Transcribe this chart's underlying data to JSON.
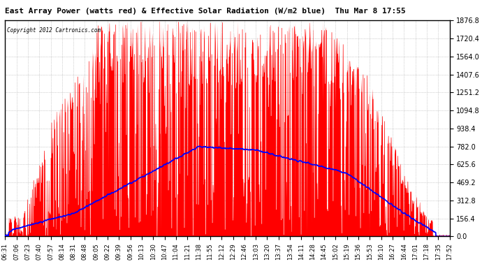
{
  "title": "East Array Power (watts red) & Effective Solar Radiation (W/m2 blue)  Thu Mar 8 17:55",
  "copyright": "Copyright 2012 Cartronics.com",
  "bg_color": "#ffffff",
  "plot_bg_color": "#ffffff",
  "grid_color": "#aaaaaa",
  "title_color": "#000000",
  "copyright_color": "#000000",
  "ytick_color": "#000000",
  "xtick_color": "#000000",
  "border_color": "#000000",
  "ymin": 0.0,
  "ymax": 1876.8,
  "yticks": [
    0.0,
    156.4,
    312.8,
    469.2,
    625.6,
    782.0,
    938.4,
    1094.8,
    1251.2,
    1407.6,
    1564.0,
    1720.4,
    1876.8
  ],
  "xtick_labels": [
    "06:31",
    "07:06",
    "07:23",
    "07:40",
    "07:57",
    "08:14",
    "08:31",
    "08:48",
    "09:05",
    "09:22",
    "09:39",
    "09:56",
    "10:13",
    "10:30",
    "10:47",
    "11:04",
    "11:21",
    "11:38",
    "11:55",
    "12:12",
    "12:29",
    "12:46",
    "13:03",
    "13:20",
    "13:37",
    "13:54",
    "14:11",
    "14:28",
    "14:45",
    "15:02",
    "15:19",
    "15:36",
    "15:53",
    "16:10",
    "16:27",
    "16:44",
    "17:01",
    "17:18",
    "17:35",
    "17:52"
  ],
  "red_color": "#ff0000",
  "blue_color": "#0000ff",
  "figsize": [
    6.9,
    3.75
  ],
  "dpi": 100
}
